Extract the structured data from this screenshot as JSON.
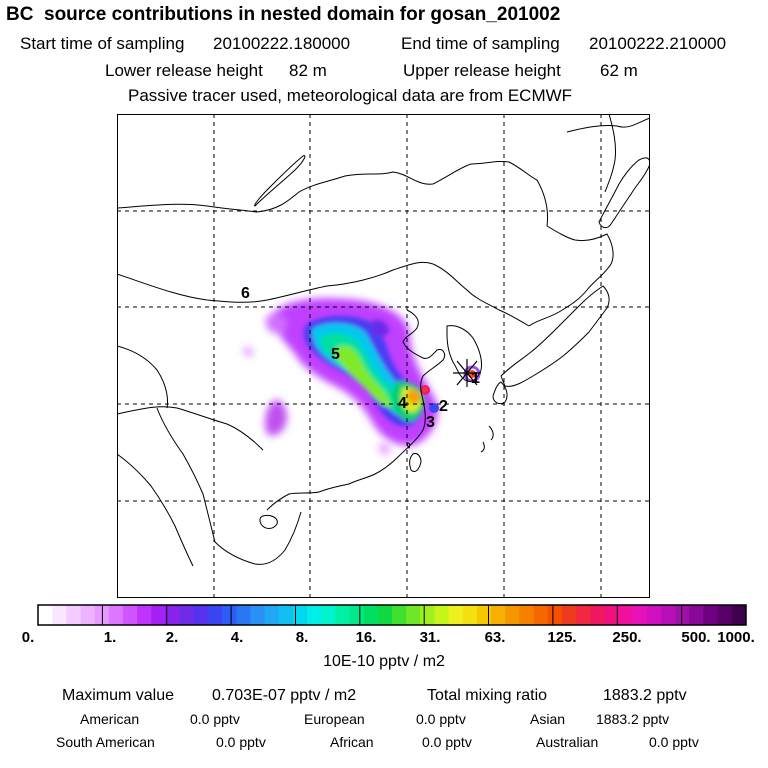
{
  "header": {
    "title": "BC  source contributions in nested domain for gosan_201002",
    "start_label": "Start time of sampling",
    "start_value": "20100222.180000",
    "end_label": "End time of sampling",
    "end_value": "20100222.210000",
    "lower_label": "Lower release height",
    "lower_value": "82 m",
    "upper_label": "Upper release height",
    "upper_value": "62 m",
    "note": "Passive tracer used, meteorological data are from ECMWF"
  },
  "map": {
    "region_labels": [
      "1",
      "2",
      "3",
      "4",
      "5",
      "6"
    ],
    "site_marker": "receptor-star"
  },
  "colorbar": {
    "tick_labels": [
      "0.",
      "1.",
      "2.",
      "4.",
      "8.",
      "16.",
      "31.",
      "63.",
      "125.",
      "250.",
      "500.",
      "1000."
    ],
    "colors": [
      "#ffffff",
      "#fbe6ff",
      "#f5ccff",
      "#eeb3ff",
      "#e699ff",
      "#dd77ff",
      "#d055ff",
      "#c033ff",
      "#a520f5",
      "#8a22ee",
      "#6f2ce8",
      "#5533ee",
      "#3b46f2",
      "#2e5df5",
      "#2a76f5",
      "#2a90f5",
      "#20a8f5",
      "#10c0f2",
      "#00d8f0",
      "#00eee8",
      "#00f5cc",
      "#00f0a8",
      "#00e888",
      "#00e060",
      "#10d840",
      "#40e030",
      "#70e828",
      "#a0f020",
      "#c8f518",
      "#f0f020",
      "#f5e010",
      "#f5c800",
      "#f5b000",
      "#f59800",
      "#f58000",
      "#f56800",
      "#f55000",
      "#f03a20",
      "#f02840",
      "#f01860",
      "#f01080",
      "#f010a0",
      "#e810b8",
      "#d010c0",
      "#b810b8",
      "#a010a8",
      "#880898",
      "#700080",
      "#580068",
      "#400050"
    ],
    "units": "10E-10 pptv / m2"
  },
  "stats": {
    "max_label": "Maximum value",
    "max_value": "0.703E-07 pptv / m2",
    "total_label": "Total mixing ratio",
    "total_value": "1883.2 pptv",
    "american_label": "American",
    "american_value": "0.0 pptv",
    "european_label": "European",
    "european_value": "0.0 pptv",
    "asian_label": "Asian",
    "asian_value": "1883.2 pptv",
    "southam_label": "South American",
    "southam_value": "0.0 pptv",
    "african_label": "African",
    "african_value": "0.0 pptv",
    "australian_label": "Australian",
    "australian_value": "0.0 pptv"
  }
}
